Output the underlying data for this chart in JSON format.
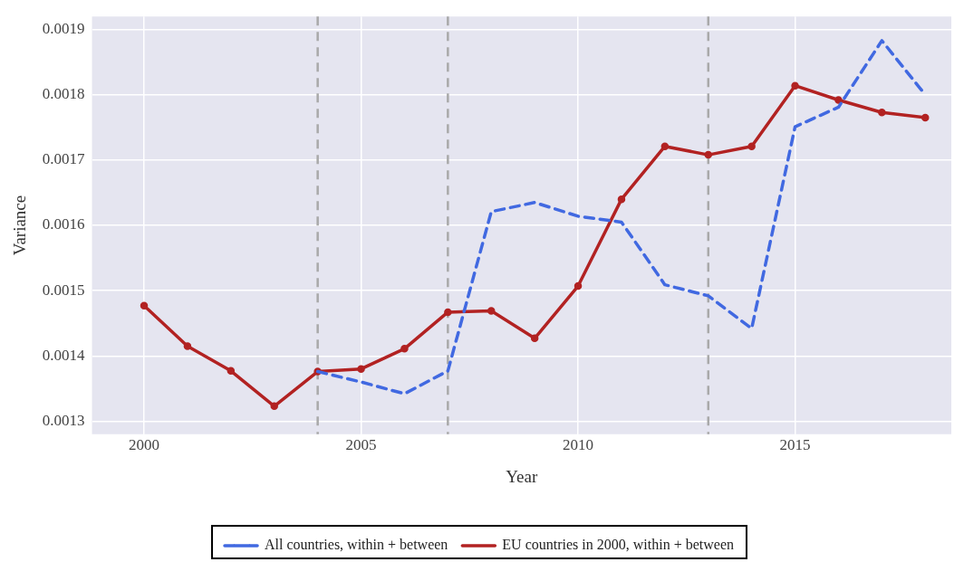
{
  "chart_data": {
    "type": "line",
    "xlabel": "Year",
    "ylabel": "Variance",
    "x": [
      2000,
      2001,
      2002,
      2003,
      2004,
      2005,
      2006,
      2007,
      2008,
      2009,
      2010,
      2011,
      2012,
      2013,
      2014,
      2015,
      2016,
      2017,
      2018
    ],
    "series": [
      {
        "name": "All countries, within + between",
        "color": "#4169e1",
        "line_style": "dashed",
        "marker": "none",
        "values": [
          null,
          null,
          null,
          null,
          0.001376,
          0.00136,
          0.001342,
          0.001377,
          0.001621,
          0.001635,
          0.001614,
          0.001605,
          0.001509,
          0.001492,
          0.001442,
          0.001751,
          0.001781,
          0.001883,
          0.0018
        ]
      },
      {
        "name": "EU countries in 2000, within + between",
        "color": "#b22222",
        "line_style": "solid",
        "marker": "circle",
        "values": [
          0.001477,
          0.001415,
          0.001377,
          0.001323,
          0.001376,
          0.00138,
          0.001411,
          0.001467,
          0.001469,
          0.001427,
          0.001507,
          0.00164,
          0.001721,
          0.001708,
          0.001721,
          0.001814,
          0.001792,
          0.001773,
          0.001765
        ]
      }
    ],
    "xlim": [
      1998.8,
      2018.6
    ],
    "xticks": [
      2000,
      2005,
      2010,
      2015
    ],
    "ylim": [
      0.00128,
      0.00192
    ],
    "yticks": [
      0.0013,
      0.0014,
      0.0015,
      0.0016,
      0.0017,
      0.0018,
      0.0019
    ],
    "ref_lines": [
      {
        "axis": "x",
        "value": 2004,
        "color": "#a9a9a9",
        "line_style": "dashed"
      },
      {
        "axis": "x",
        "value": 2007,
        "color": "#a9a9a9",
        "line_style": "dashed"
      },
      {
        "axis": "x",
        "value": 2013,
        "color": "#a9a9a9",
        "line_style": "dashed"
      }
    ],
    "grid": true,
    "legend": "bottom"
  }
}
